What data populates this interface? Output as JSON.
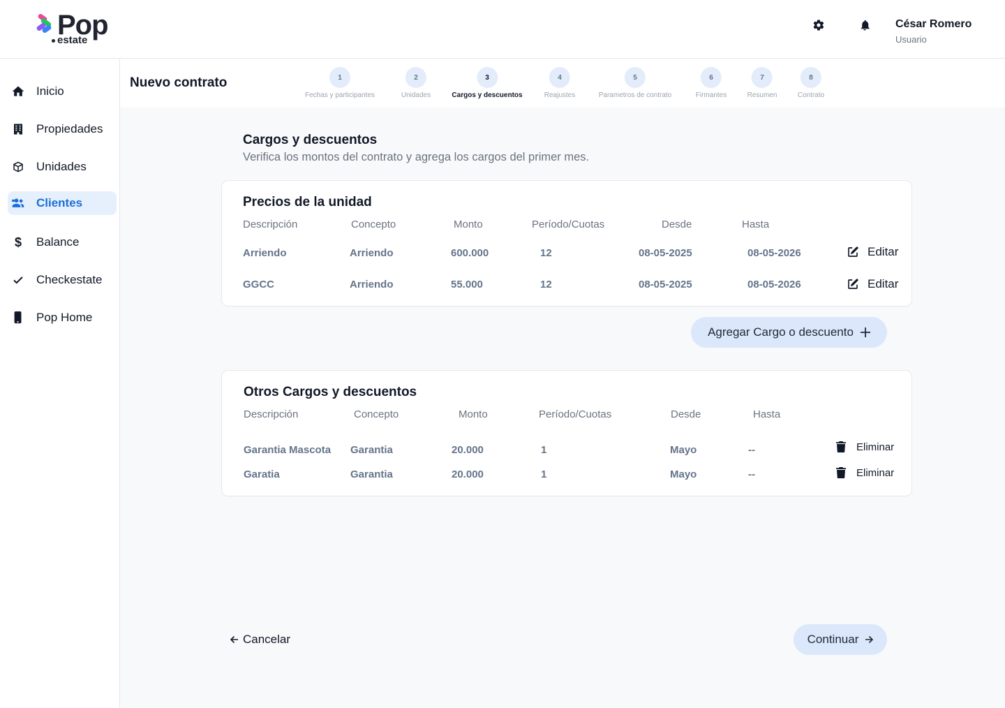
{
  "brand": {
    "name": "Pop",
    "sub": "estate"
  },
  "user": {
    "name": "César Romero",
    "role": "Usuario"
  },
  "icons": {
    "settings": "gear-icon",
    "notifications": "bell-icon"
  },
  "colors": {
    "accent": "#1a6fd8",
    "active_bg": "#e6f0fd",
    "button_bg": "#dbe7fb",
    "step_bg": "#e3ecfa"
  },
  "sidebar": {
    "items": [
      {
        "label": "Inicio",
        "icon": "home-icon"
      },
      {
        "label": "Propiedades",
        "icon": "building-icon"
      },
      {
        "label": "Unidades",
        "icon": "box-icon"
      },
      {
        "label": "Clientes",
        "icon": "users-icon",
        "active": true
      },
      {
        "label": "Balance",
        "icon": "dollar-icon"
      },
      {
        "label": "Checkestate",
        "icon": "check-icon"
      },
      {
        "label": "Pop Home",
        "icon": "phone-icon"
      }
    ]
  },
  "header": {
    "title": "Nuevo contrato",
    "steps": [
      {
        "number": "1",
        "label": "Fechas y participantes"
      },
      {
        "number": "2",
        "label": "Unidades"
      },
      {
        "number": "3",
        "label": "Cargos y descuentos",
        "current": true
      },
      {
        "number": "4",
        "label": "Reajustes"
      },
      {
        "number": "5",
        "label": "Parametros de contrato"
      },
      {
        "number": "6",
        "label": "Firmantes"
      },
      {
        "number": "7",
        "label": "Resumen"
      },
      {
        "number": "8",
        "label": "Contrato"
      }
    ]
  },
  "section": {
    "title": "Cargos y descuentos",
    "subtitle": "Verifica los montos del contrato y agrega los cargos del primer mes."
  },
  "prices": {
    "title": "Precios de la unidad",
    "columns": [
      "Descripción",
      "Concepto",
      "Monto",
      "Período/Cuotas",
      "Desde",
      "Hasta"
    ],
    "rows": [
      [
        "Arriendo",
        "Arriendo",
        "600.000",
        "12",
        "08-05-2025",
        "08-05-2026"
      ],
      [
        "GGCC",
        "Arriendo",
        "55.000",
        "12",
        "08-05-2025",
        "08-05-2026"
      ]
    ],
    "action_label": "Editar"
  },
  "add_button": {
    "label": "Agregar Cargo o descuento"
  },
  "others": {
    "title": "Otros Cargos y descuentos",
    "columns": [
      "Descripción",
      "Concepto",
      "Monto",
      "Período/Cuotas",
      "Desde",
      "Hasta"
    ],
    "rows": [
      [
        "Garantia Mascota",
        "Garantia",
        "20.000",
        "1",
        "Mayo",
        "--"
      ],
      [
        "Garatia",
        "Garantia",
        "20.000",
        "1",
        "Mayo",
        "--"
      ]
    ],
    "action_label": "Eliminar"
  },
  "footer": {
    "cancel": "Cancelar",
    "continue": "Continuar"
  }
}
